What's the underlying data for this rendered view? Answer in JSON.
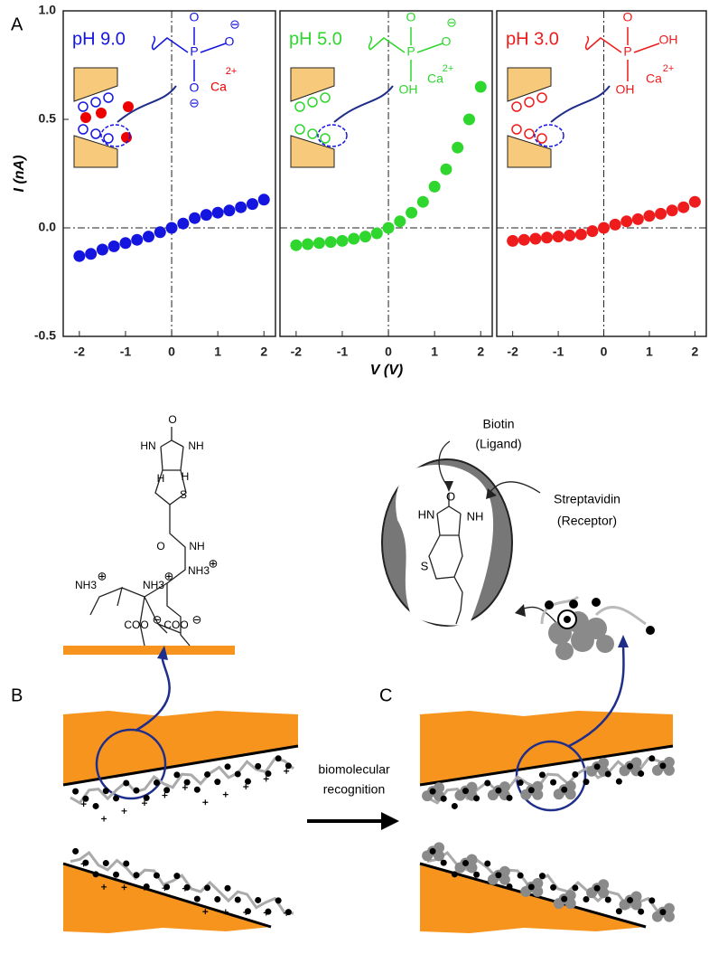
{
  "chart_data": [
    {
      "type": "scatter",
      "title": "pH 9.0",
      "ylabel": "I (nA)",
      "x": [
        -2,
        -1.75,
        -1.5,
        -1.25,
        -1,
        -0.75,
        -0.5,
        -0.25,
        0,
        0.25,
        0.5,
        0.75,
        1,
        1.25,
        1.5,
        1.75,
        2
      ],
      "series": [
        {
          "color": "#1515e0",
          "values": [
            -0.13,
            -0.12,
            -0.1,
            -0.085,
            -0.07,
            -0.055,
            -0.04,
            -0.02,
            0,
            0.02,
            0.045,
            0.06,
            0.07,
            0.08,
            0.095,
            0.11,
            0.13
          ]
        }
      ],
      "xlim": [
        -2.35,
        2.25
      ],
      "ylim": [
        -0.5,
        1.0
      ],
      "xticks": [
        -2,
        -1,
        0,
        1,
        2
      ],
      "yticks": [
        -0.5,
        {
          "value": 0,
          "label": "0.0"
        },
        0.5,
        {
          "value": 1,
          "label": "1.0"
        }
      ]
    },
    {
      "type": "scatter",
      "title": "pH 5.0",
      "xlabel": "V (V)",
      "x": [
        -2,
        -1.75,
        -1.5,
        -1.25,
        -1,
        -0.75,
        -0.5,
        -0.25,
        0,
        0.25,
        0.5,
        0.75,
        1,
        1.25,
        1.5,
        1.75,
        2
      ],
      "series": [
        {
          "color": "#2ed62e",
          "values": [
            -0.08,
            -0.075,
            -0.07,
            -0.065,
            -0.06,
            -0.05,
            -0.04,
            -0.025,
            0,
            0.03,
            0.07,
            0.12,
            0.19,
            0.27,
            0.37,
            0.5,
            0.65
          ]
        }
      ],
      "xlim": [
        -2.35,
        2.25
      ],
      "ylim": [
        -0.5,
        1.0
      ],
      "xticks": [
        -2,
        -1,
        0,
        1,
        2
      ]
    },
    {
      "type": "scatter",
      "title": "pH 3.0",
      "x": [
        -2,
        -1.75,
        -1.5,
        -1.25,
        -1,
        -0.75,
        -0.5,
        -0.25,
        0,
        0.25,
        0.5,
        0.75,
        1,
        1.25,
        1.5,
        1.75,
        2
      ],
      "series": [
        {
          "color": "#ee1c1c",
          "values": [
            -0.06,
            -0.055,
            -0.05,
            -0.045,
            -0.04,
            -0.035,
            -0.03,
            -0.015,
            0,
            0.015,
            0.03,
            0.04,
            0.055,
            0.065,
            0.08,
            0.095,
            0.12
          ]
        }
      ],
      "xlim": [
        -2.35,
        2.25
      ],
      "ylim": [
        -0.5,
        1.0
      ],
      "xticks": [
        -2,
        -1,
        0,
        1,
        2
      ]
    }
  ],
  "panel_labels": [
    "A",
    "B",
    "C"
  ],
  "insets": [
    {
      "labels": [
        "O",
        "P",
        "O",
        "⊖",
        "O",
        "⊖",
        "Ca",
        "2+"
      ]
    },
    {
      "labels": [
        "O",
        "P",
        "O",
        "⊖",
        "OH",
        "Ca",
        "2+"
      ]
    },
    {
      "labels": [
        "O",
        "P",
        "OH",
        "OH",
        "Ca",
        "2+"
      ]
    }
  ],
  "biotin_structure": {
    "labels": [
      "O",
      "HN",
      "NH",
      "H",
      "H",
      "S",
      "O",
      "NH",
      "NH3",
      "⊕",
      "NH3",
      "⊕",
      "NH3",
      "⊕",
      "COO",
      "⊖",
      "COO",
      "⊖"
    ]
  },
  "recognition": [
    "biomolecular",
    "recognition"
  ],
  "complex": {
    "ligand": [
      "Biotin",
      "(Ligand)"
    ],
    "receptor": [
      "Streptavidin",
      "(Receptor)"
    ],
    "labels": [
      "O",
      "HN",
      "NH",
      "S"
    ]
  }
}
